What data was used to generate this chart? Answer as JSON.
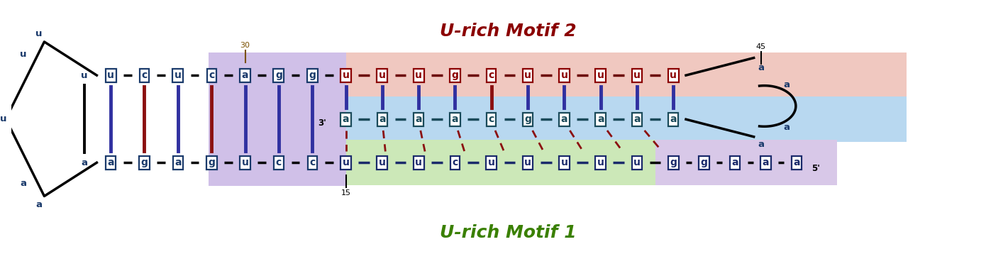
{
  "bg_color": "#ffffff",
  "motif2_label": "U-rich Motif 2",
  "motif1_label": "U-rich Motif 1",
  "motif2_color": "#f0c8c0",
  "motif1_color": "#cce8b8",
  "middle_color": "#b8d8f0",
  "stem_color": "#d0c0e8",
  "tail_color": "#d8c8e8",
  "top_strand": [
    "u",
    "u",
    "u",
    "g",
    "c",
    "u",
    "u",
    "u",
    "u",
    "u"
  ],
  "mid_strand": [
    "a",
    "a",
    "a",
    "a",
    "c",
    "g",
    "a",
    "a",
    "a",
    "a"
  ],
  "bot_strand": [
    "u",
    "u",
    "u",
    "c",
    "u",
    "u",
    "u",
    "u",
    "u"
  ],
  "stem_top_seq": [
    "u",
    "c",
    "u",
    "c",
    "a",
    "g",
    "g"
  ],
  "stem_bot_seq": [
    "a",
    "g",
    "a",
    "g",
    "u",
    "c",
    "c"
  ],
  "tail_seq": [
    "g",
    "g",
    "a",
    "a",
    "a"
  ],
  "top_vc_colors": [
    "#3030a0",
    "#3030a0",
    "#3030a0",
    "#3030a0",
    "#8b1010",
    "#3030a0",
    "#3030a0",
    "#3030a0",
    "#3030a0",
    "#3030a0"
  ],
  "stem_vc_colors": [
    "#3030a0",
    "#8b1010",
    "#3030a0",
    "#8b1010",
    "#3030a0",
    "#3030a0",
    "#3030a0"
  ]
}
